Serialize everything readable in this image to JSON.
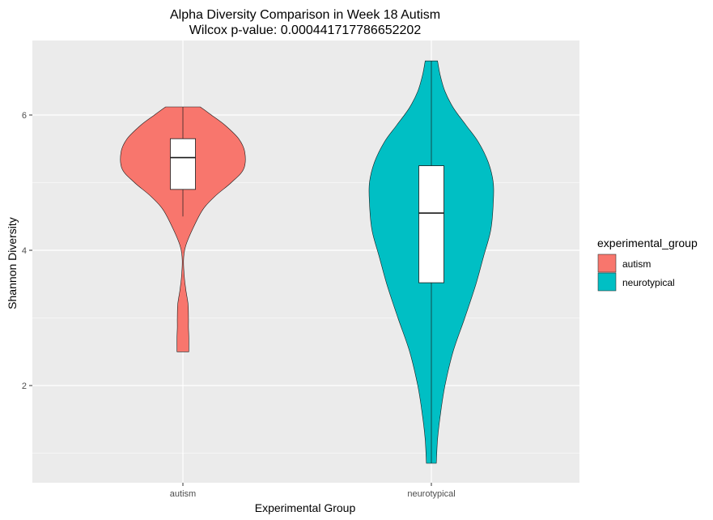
{
  "chart_data": {
    "type": "violin",
    "title": "Alpha Diversity Comparison in Week 18 Autism",
    "subtitle": "Wilcox p-value: 0.000441717786652202",
    "xlabel": "Experimental Group",
    "ylabel": "Shannon Diversity",
    "categories": [
      "autism",
      "neurotypical"
    ],
    "ylim": [
      0.8,
      6.9
    ],
    "yticks": [
      2,
      4,
      6
    ],
    "grid": true,
    "legend": {
      "title": "experimental_group",
      "position": "right",
      "entries": [
        {
          "label": "autism",
          "color": "#F8766D"
        },
        {
          "label": "neurotypical",
          "color": "#00BFC4"
        }
      ]
    },
    "series": [
      {
        "name": "autism",
        "color": "#F8766D",
        "box": {
          "q1": 4.9,
          "median": 5.37,
          "q3": 5.65,
          "whisker_low": 4.5,
          "whisker_high": 6.12
        },
        "density": [
          {
            "y": 2.5,
            "w": 0.048
          },
          {
            "y": 2.7,
            "w": 0.048
          },
          {
            "y": 2.85,
            "w": 0.045
          },
          {
            "y": 3.0,
            "w": 0.045
          },
          {
            "y": 3.2,
            "w": 0.042
          },
          {
            "y": 3.4,
            "w": 0.025
          },
          {
            "y": 3.6,
            "w": 0.012
          },
          {
            "y": 3.85,
            "w": 0.005
          },
          {
            "y": 4.05,
            "w": 0.02
          },
          {
            "y": 4.3,
            "w": 0.075
          },
          {
            "y": 4.6,
            "w": 0.16
          },
          {
            "y": 4.8,
            "w": 0.26
          },
          {
            "y": 5.0,
            "w": 0.39
          },
          {
            "y": 5.2,
            "w": 0.49
          },
          {
            "y": 5.45,
            "w": 0.5
          },
          {
            "y": 5.65,
            "w": 0.45
          },
          {
            "y": 5.85,
            "w": 0.34
          },
          {
            "y": 6.0,
            "w": 0.23
          },
          {
            "y": 6.12,
            "w": 0.14
          }
        ]
      },
      {
        "name": "neurotypical",
        "color": "#00BFC4",
        "box": {
          "q1": 3.52,
          "median": 4.55,
          "q3": 5.25,
          "whisker_low": 0.85,
          "whisker_high": 6.8
        },
        "density": [
          {
            "y": 0.85,
            "w": 0.04
          },
          {
            "y": 1.2,
            "w": 0.05
          },
          {
            "y": 1.6,
            "w": 0.075
          },
          {
            "y": 2.0,
            "w": 0.11
          },
          {
            "y": 2.5,
            "w": 0.175
          },
          {
            "y": 3.0,
            "w": 0.27
          },
          {
            "y": 3.5,
            "w": 0.36
          },
          {
            "y": 3.9,
            "w": 0.42
          },
          {
            "y": 4.3,
            "w": 0.48
          },
          {
            "y": 4.7,
            "w": 0.5
          },
          {
            "y": 5.0,
            "w": 0.5
          },
          {
            "y": 5.3,
            "w": 0.46
          },
          {
            "y": 5.6,
            "w": 0.38
          },
          {
            "y": 5.85,
            "w": 0.28
          },
          {
            "y": 6.1,
            "w": 0.18
          },
          {
            "y": 6.35,
            "w": 0.11
          },
          {
            "y": 6.6,
            "w": 0.07
          },
          {
            "y": 6.8,
            "w": 0.05
          }
        ]
      }
    ]
  }
}
